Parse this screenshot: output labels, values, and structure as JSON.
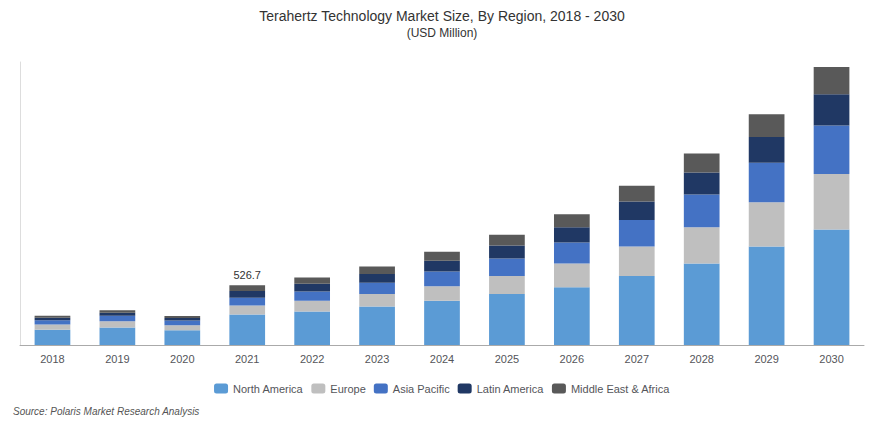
{
  "chart_data": {
    "type": "bar",
    "title": "Terahertz Technology Market Size, By Region, 2018 - 2030",
    "subtitle": "(USD Million)",
    "source": "Source: Polaris Market Research Analysis",
    "categories": [
      "2018",
      "2019",
      "2020",
      "2021",
      "2022",
      "2023",
      "2024",
      "2025",
      "2026",
      "2027",
      "2028",
      "2029",
      "2030"
    ],
    "series": [
      {
        "name": "North America",
        "color": "#5B9BD5",
        "values": [
          135,
          155,
          130,
          270,
          295,
          340,
          390,
          450,
          510,
          610,
          720,
          870,
          1020
        ]
      },
      {
        "name": "Europe",
        "color": "#BFBFBF",
        "values": [
          45,
          55,
          45,
          80,
          95,
          110,
          130,
          160,
          210,
          260,
          320,
          390,
          490
        ]
      },
      {
        "name": "Asia Pacific",
        "color": "#4472C4",
        "values": [
          38,
          48,
          42,
          68,
          82,
          100,
          130,
          155,
          185,
          235,
          290,
          350,
          430
        ]
      },
      {
        "name": "Latin America",
        "color": "#203864",
        "values": [
          22,
          27,
          22,
          60,
          68,
          78,
          95,
          115,
          135,
          162,
          193,
          228,
          275
        ]
      },
      {
        "name": "Middle East & Africa",
        "color": "#595959",
        "values": [
          18,
          23,
          18,
          49,
          57,
          65,
          78,
          95,
          115,
          140,
          168,
          200,
          240
        ]
      }
    ],
    "annotations": [
      {
        "category": "2021",
        "text": "526.7"
      }
    ],
    "ylim": [
      0,
      2500
    ],
    "stacked": true,
    "grid": false,
    "legend": "bottom",
    "tick_labels": "x"
  }
}
